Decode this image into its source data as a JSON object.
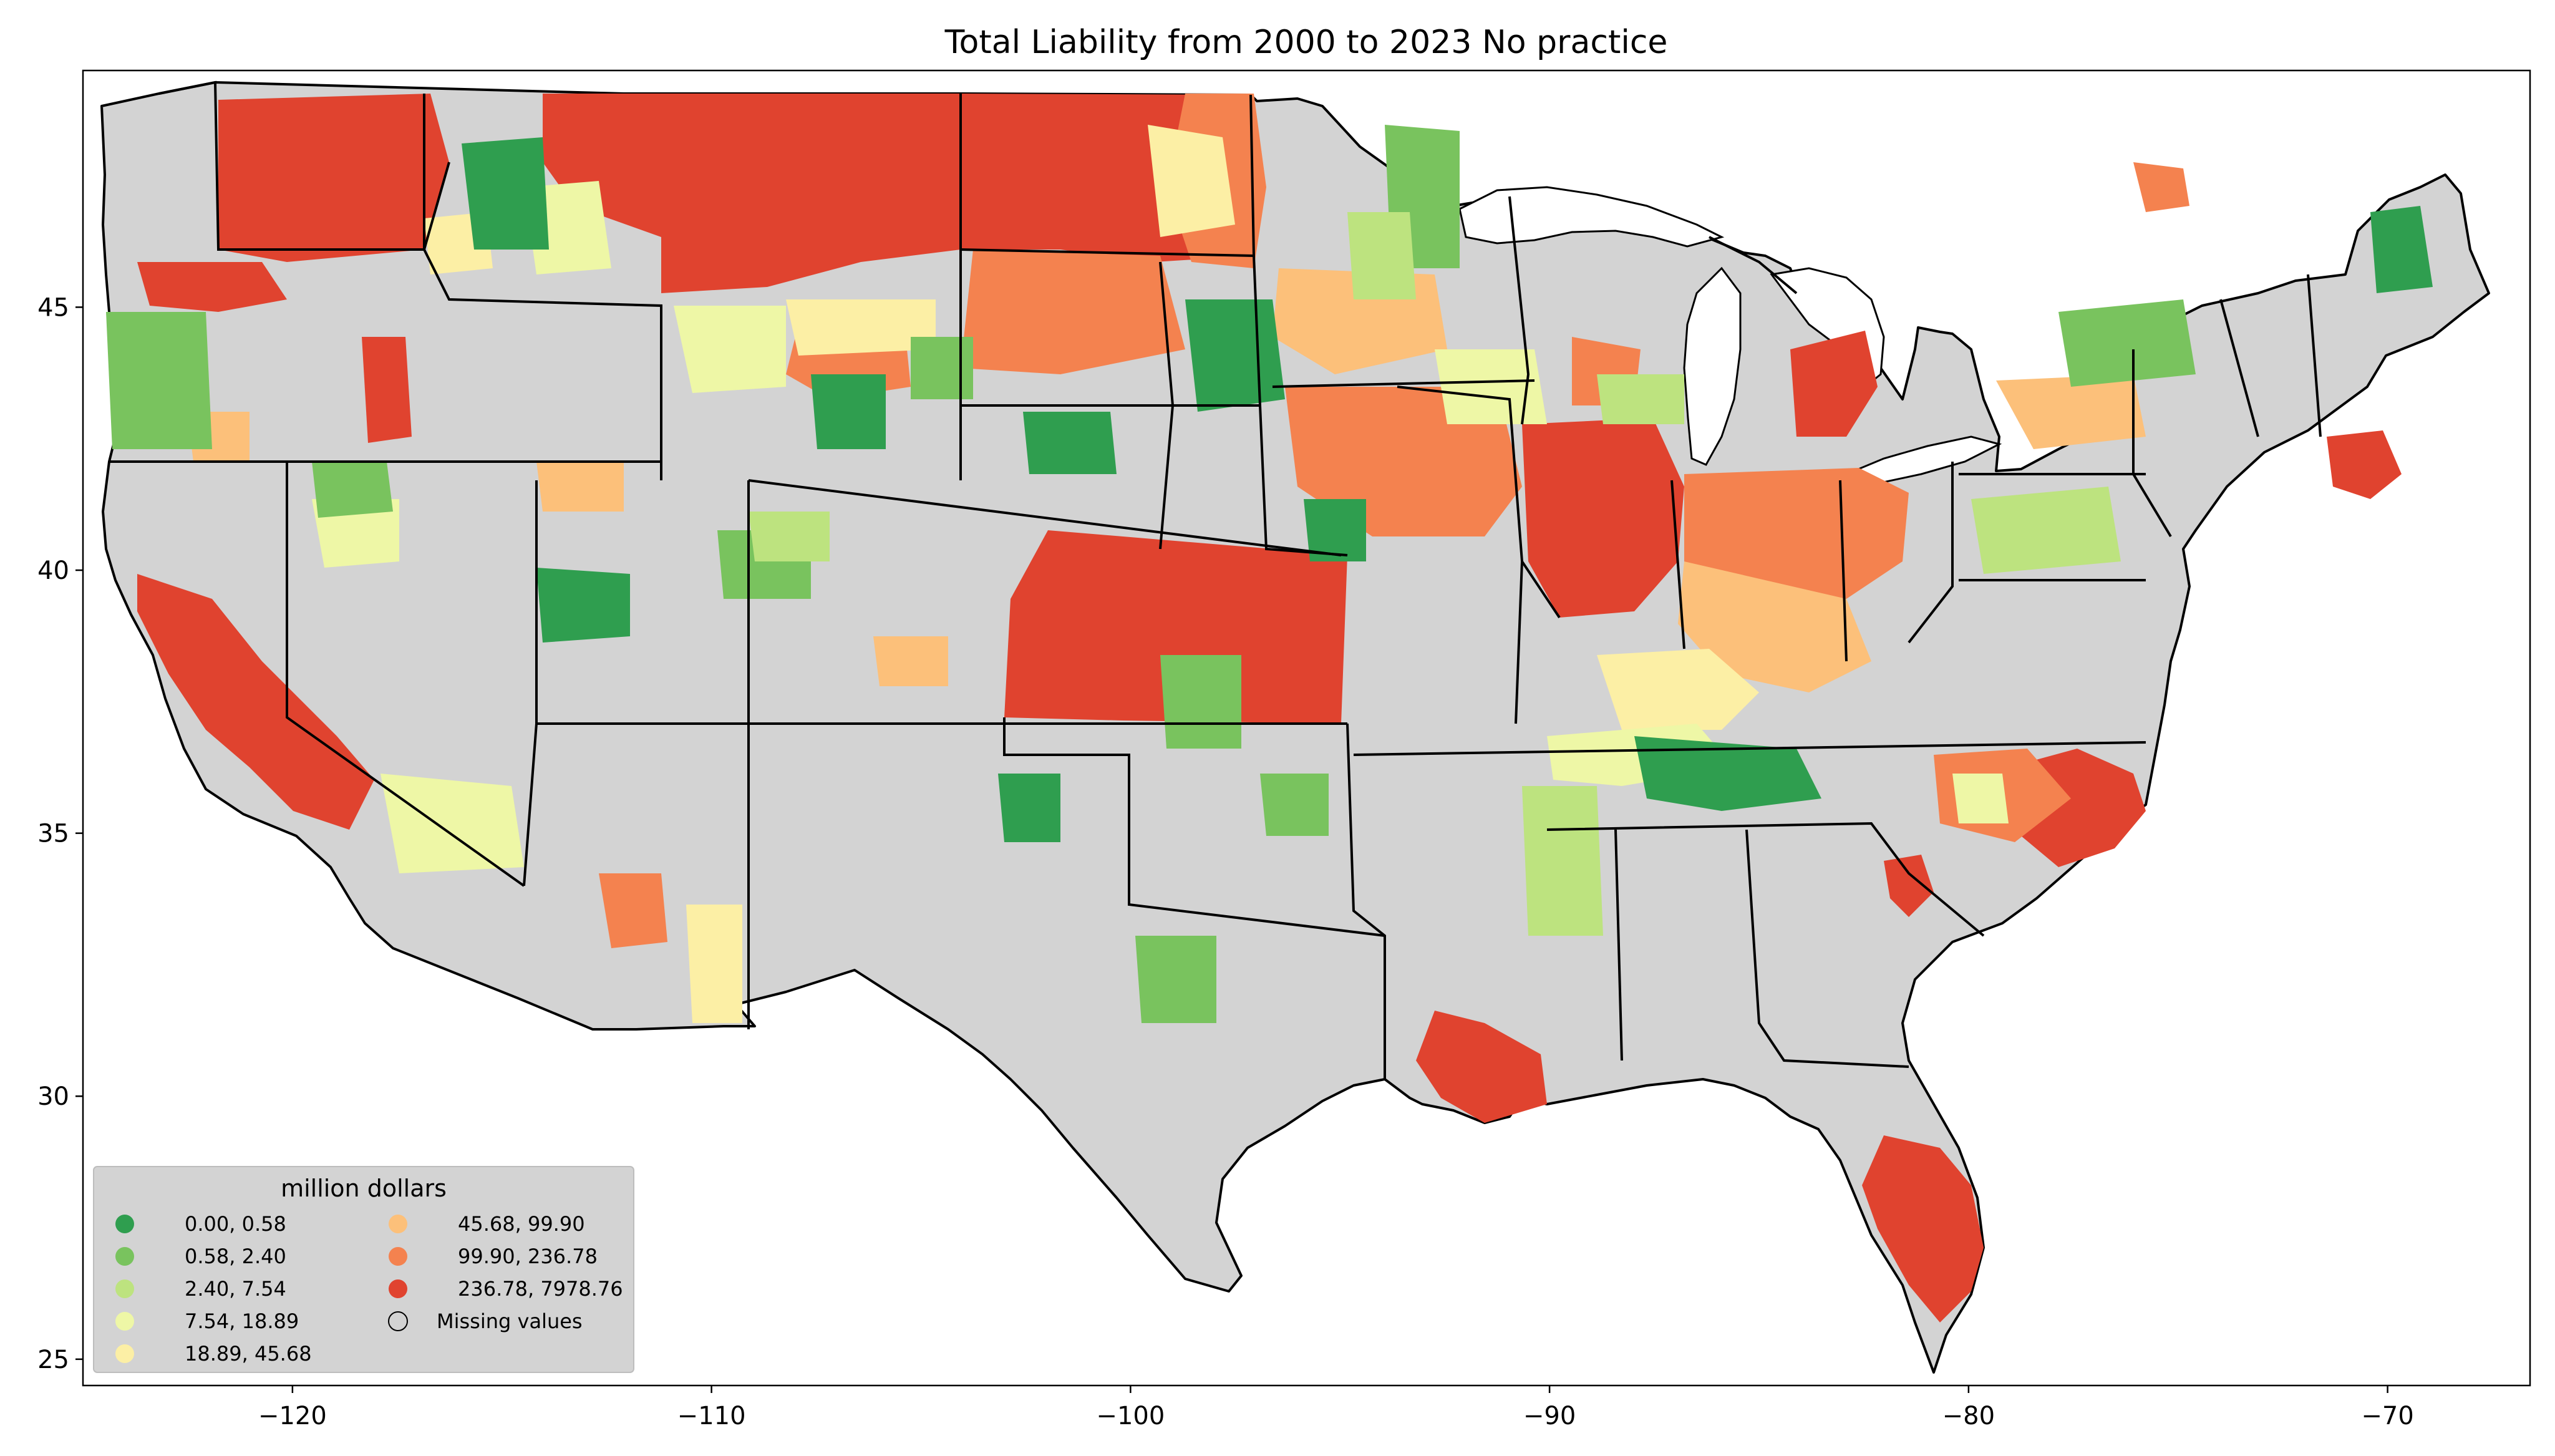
{
  "title": "Total Liability from 2000 to 2023 No practice",
  "map": {
    "type": "county choropleth",
    "region": "Contiguous United States",
    "x_axis": {
      "range": [
        -125,
        -66.6
      ],
      "ticks": [
        {
          "value": -120,
          "label": "−120"
        },
        {
          "value": -110,
          "label": "−110"
        },
        {
          "value": -100,
          "label": "−100"
        },
        {
          "value": -90,
          "label": "−90"
        },
        {
          "value": -80,
          "label": "−80"
        },
        {
          "value": -70,
          "label": "−70"
        }
      ]
    },
    "y_axis": {
      "range": [
        24.5,
        49.5
      ],
      "ticks": [
        {
          "value": 25,
          "label": "25"
        },
        {
          "value": 30,
          "label": "30"
        },
        {
          "value": 35,
          "label": "35"
        },
        {
          "value": 40,
          "label": "40"
        },
        {
          "value": 45,
          "label": "45"
        }
      ]
    }
  },
  "legend": {
    "title": "million dollars",
    "placement": "lower-left",
    "items": [
      {
        "label": "0.00,    0.58",
        "color": "#2f9e4f"
      },
      {
        "label": "0.58,    2.40",
        "color": "#79c35e"
      },
      {
        "label": "2.40,    7.54",
        "color": "#bde37f"
      },
      {
        "label": "7.54,   18.89",
        "color": "#eef7a6"
      },
      {
        "label": "18.89,   45.68",
        "color": "#fcefa5"
      },
      {
        "label": "45.68,   99.90",
        "color": "#fcc07a"
      },
      {
        "label": "99.90,  236.78",
        "color": "#f4824f"
      },
      {
        "label": "236.78, 7978.76",
        "color": "#e0432f"
      },
      {
        "label": "Missing values",
        "color": "#d3d3d3"
      }
    ]
  },
  "colors": {
    "missing": "#d3d3d3",
    "border": "#000000"
  }
}
